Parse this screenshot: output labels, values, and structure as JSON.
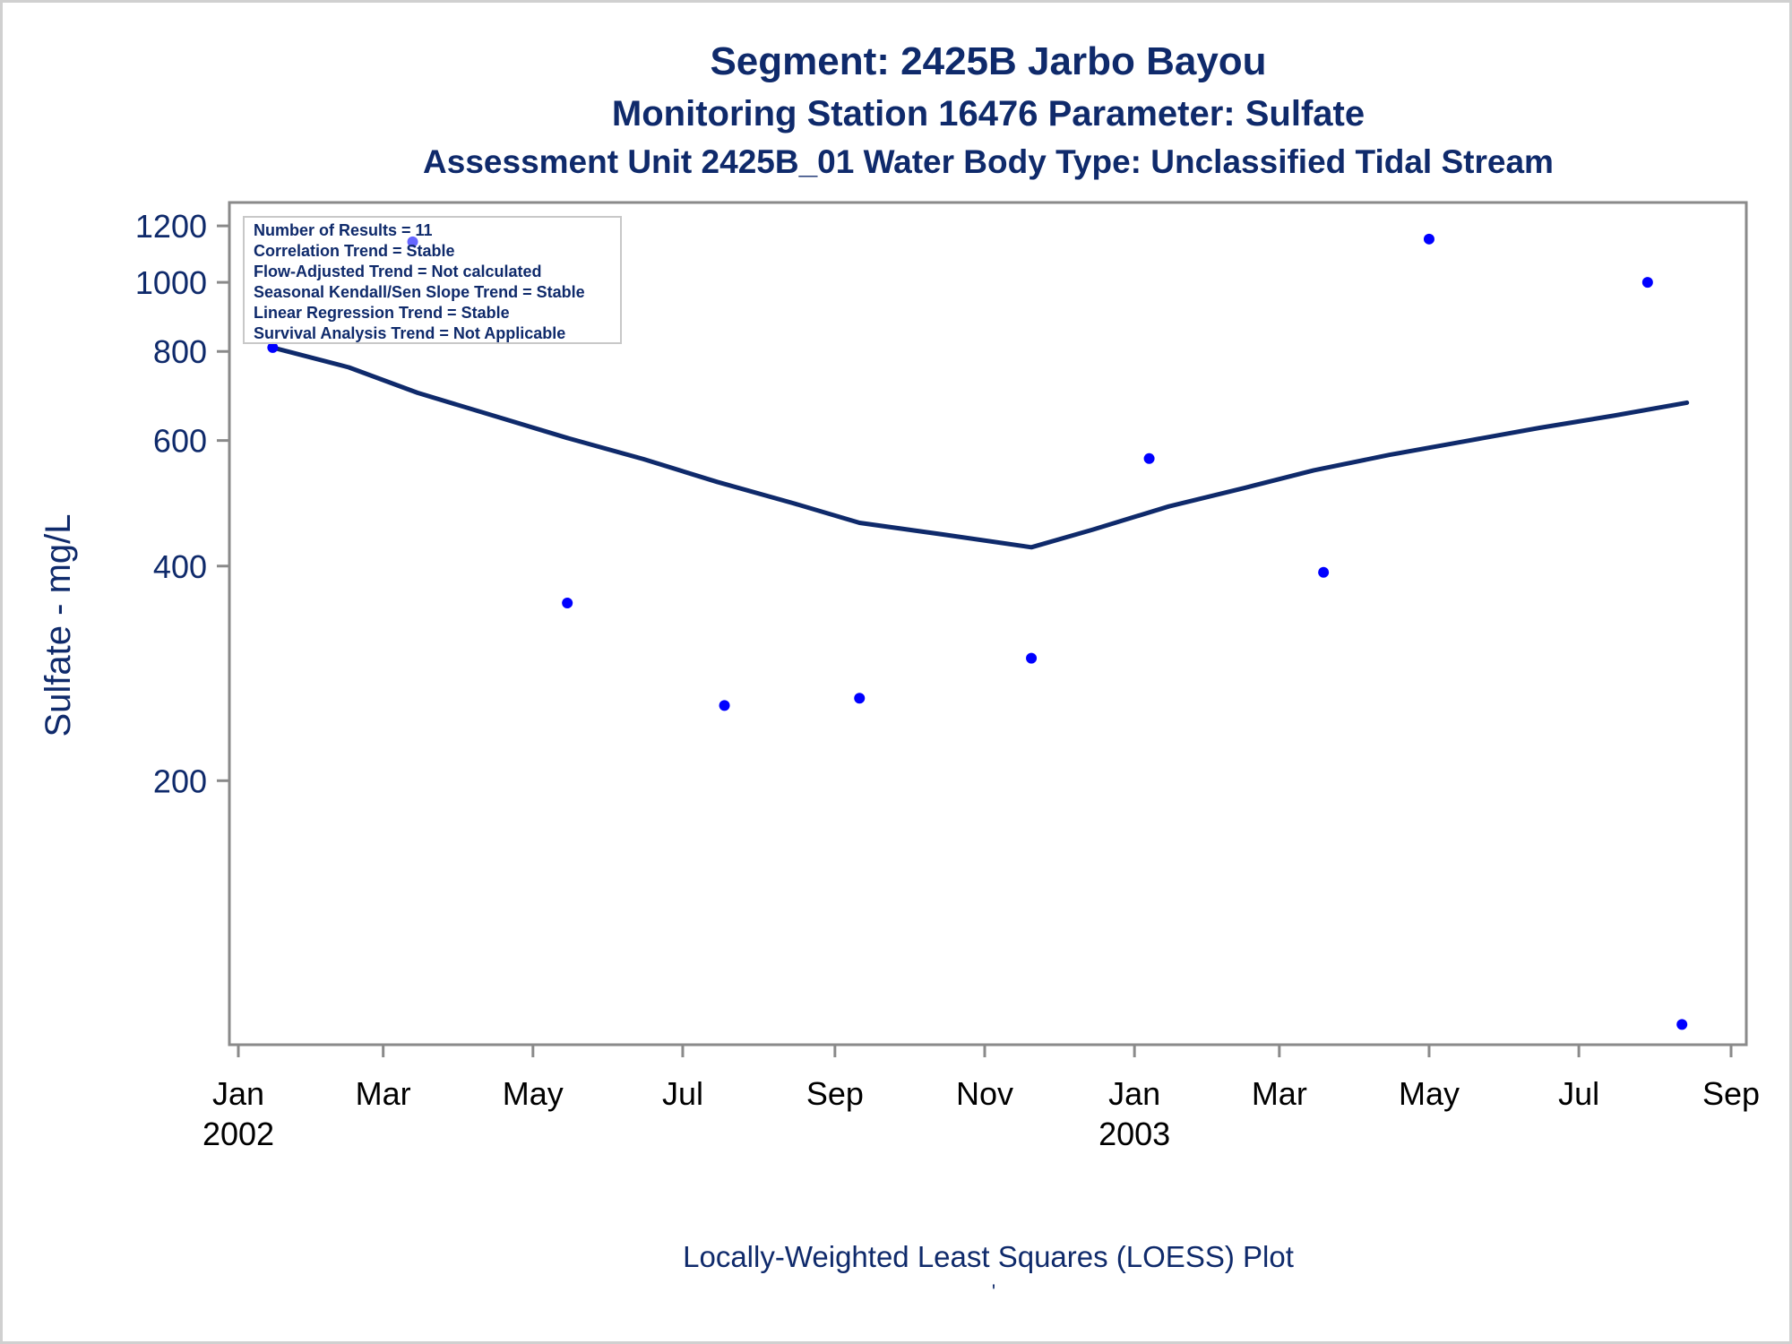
{
  "chart_data": {
    "type": "scatter",
    "title": "Segment: 2425B  Jarbo Bayou",
    "subtitle": "Monitoring Station 16476 Parameter: Sulfate",
    "subtitle2": "Assessment Unit 2425B_01   Water Body Type: Unclassified Tidal Stream",
    "ylabel": "Sulfate - mg/L",
    "footnote": "Locally-Weighted Least Squares (LOESS) Plot",
    "footnote_mark": "'",
    "y_scale": "log",
    "ylim": [
      88,
      1250
    ],
    "y_ticks": [
      200,
      400,
      600,
      800,
      1000,
      1200
    ],
    "xlim": [
      "2002-01-01",
      "2003-09-01"
    ],
    "x_ticks": [
      {
        "date": "2002-01-01",
        "month": "Jan",
        "year": "2002"
      },
      {
        "date": "2002-03-01",
        "month": "Mar",
        "year": ""
      },
      {
        "date": "2002-05-01",
        "month": "May",
        "year": ""
      },
      {
        "date": "2002-07-01",
        "month": "Jul",
        "year": ""
      },
      {
        "date": "2002-09-01",
        "month": "Sep",
        "year": ""
      },
      {
        "date": "2002-11-01",
        "month": "Nov",
        "year": ""
      },
      {
        "date": "2003-01-01",
        "month": "Jan",
        "year": "2003"
      },
      {
        "date": "2003-03-01",
        "month": "Mar",
        "year": ""
      },
      {
        "date": "2003-05-01",
        "month": "May",
        "year": ""
      },
      {
        "date": "2003-07-01",
        "month": "Jul",
        "year": ""
      },
      {
        "date": "2003-09-01",
        "month": "Sep",
        "year": ""
      }
    ],
    "points": [
      {
        "x": "2002-01-15",
        "y": 810
      },
      {
        "x": "2002-03-13",
        "y": 1140
      },
      {
        "x": "2002-05-15",
        "y": 355
      },
      {
        "x": "2002-07-18",
        "y": 255
      },
      {
        "x": "2002-09-11",
        "y": 261
      },
      {
        "x": "2002-11-20",
        "y": 297
      },
      {
        "x": "2003-01-07",
        "y": 566
      },
      {
        "x": "2003-03-19",
        "y": 392
      },
      {
        "x": "2003-05-01",
        "y": 1150
      },
      {
        "x": "2003-07-29",
        "y": 1000
      },
      {
        "x": "2003-08-12",
        "y": 91
      }
    ],
    "loess_line": [
      {
        "x": "2002-01-15",
        "y": 810
      },
      {
        "x": "2002-02-15",
        "y": 760
      },
      {
        "x": "2002-03-15",
        "y": 700
      },
      {
        "x": "2002-04-15",
        "y": 650
      },
      {
        "x": "2002-05-15",
        "y": 605
      },
      {
        "x": "2002-06-15",
        "y": 565
      },
      {
        "x": "2002-07-15",
        "y": 525
      },
      {
        "x": "2002-08-15",
        "y": 490
      },
      {
        "x": "2002-09-11",
        "y": 460
      },
      {
        "x": "2002-10-15",
        "y": 443
      },
      {
        "x": "2002-11-20",
        "y": 425
      },
      {
        "x": "2002-12-15",
        "y": 450
      },
      {
        "x": "2003-01-15",
        "y": 485
      },
      {
        "x": "2003-02-15",
        "y": 515
      },
      {
        "x": "2003-03-15",
        "y": 545
      },
      {
        "x": "2003-04-15",
        "y": 573
      },
      {
        "x": "2003-05-15",
        "y": 598
      },
      {
        "x": "2003-06-15",
        "y": 625
      },
      {
        "x": "2003-07-15",
        "y": 650
      },
      {
        "x": "2003-08-14",
        "y": 678
      }
    ],
    "stats_box": [
      "Number of Results = 11",
      "Correlation Trend = Stable",
      "Flow-Adjusted Trend = Not calculated",
      "Seasonal Kendall/Sen Slope Trend = Stable",
      "Linear Regression Trend = Stable",
      "Survival Analysis Trend = Not Applicable"
    ],
    "legend": "none",
    "grid": false,
    "colors": {
      "title": "#0f2a6b",
      "axis_text_y": "#0f2a6b",
      "axis_text_x": "#000000",
      "points": "#0000ff",
      "line": "#0f2a6b",
      "frame": "#8a8a8a"
    }
  }
}
